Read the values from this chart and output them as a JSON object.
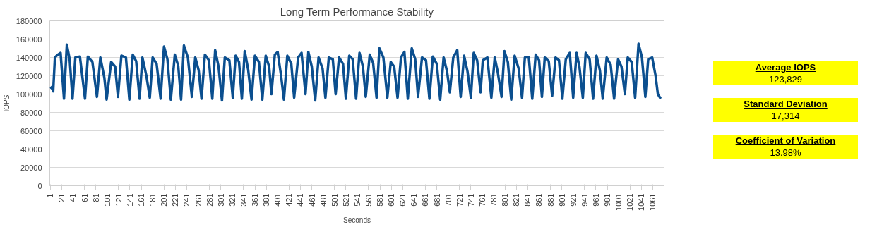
{
  "chart_data": {
    "type": "line",
    "title": "Long Term Performance Stability",
    "xlabel": "Seconds",
    "ylabel": "IOPS",
    "x": [
      1,
      4,
      6,
      9,
      14,
      19,
      25,
      30,
      35,
      40,
      45,
      53,
      62,
      67,
      75,
      83,
      89,
      96,
      100,
      108,
      115,
      120,
      126,
      134,
      140,
      146,
      152,
      158,
      163,
      170,
      176,
      181,
      188,
      195,
      201,
      207,
      213,
      220,
      226,
      231,
      236,
      243,
      250,
      256,
      262,
      267,
      273,
      280,
      286,
      291,
      297,
      303,
      308,
      316,
      322,
      327,
      333,
      338,
      343,
      349,
      355,
      361,
      368,
      374,
      380,
      386,
      390,
      396,
      401,
      407,
      412,
      418,
      425,
      430,
      437,
      443,
      450,
      455,
      461,
      467,
      473,
      480,
      485,
      491,
      498,
      503,
      509,
      516,
      521,
      527,
      533,
      539,
      545,
      551,
      556,
      563,
      569,
      575,
      580,
      587,
      594,
      600,
      606,
      612,
      618,
      624,
      630,
      637,
      643,
      648,
      655,
      662,
      668,
      674,
      681,
      687,
      693,
      699,
      704,
      710,
      717,
      723,
      729,
      735,
      741,
      746,
      752,
      758,
      762,
      770,
      777,
      783,
      788,
      795,
      800,
      806,
      812,
      818,
      825,
      831,
      836,
      843,
      849,
      855,
      861,
      866,
      871,
      878,
      884,
      890,
      896,
      902,
      908,
      915,
      921,
      927,
      932,
      938,
      943,
      950,
      956,
      962,
      968,
      973,
      980,
      987,
      993,
      1000,
      1006,
      1012,
      1017,
      1024,
      1030,
      1036,
      1042,
      1048,
      1053,
      1060,
      1066,
      1070,
      1075
    ],
    "series": [
      {
        "color": "#0b4f8f",
        "values": [
          106000,
          108000,
          103000,
          140000,
          143000,
          145000,
          95000,
          154000,
          138000,
          95000,
          140000,
          141000,
          95000,
          141000,
          135000,
          97000,
          140000,
          118000,
          94000,
          135000,
          130000,
          97000,
          142000,
          140000,
          94000,
          143000,
          136000,
          95000,
          140000,
          120000,
          96000,
          140000,
          133000,
          95000,
          152000,
          138000,
          94000,
          143000,
          131000,
          94000,
          153000,
          140000,
          97000,
          140000,
          126000,
          95000,
          143000,
          137000,
          95000,
          148000,
          130000,
          93000,
          140000,
          137000,
          96000,
          142000,
          135000,
          95000,
          147000,
          127000,
          94000,
          142000,
          135000,
          94000,
          142000,
          130000,
          100000,
          143000,
          146000,
          120000,
          94000,
          142000,
          133000,
          96000,
          140000,
          145000,
          100000,
          146000,
          130000,
          93000,
          140000,
          128000,
          96000,
          140000,
          138000,
          100000,
          140000,
          133000,
          95000,
          142000,
          138000,
          95000,
          145000,
          130000,
          97000,
          143000,
          134000,
          96000,
          150000,
          140000,
          96000,
          135000,
          130000,
          96000,
          140000,
          146000,
          95000,
          150000,
          138000,
          97000,
          140000,
          137000,
          95000,
          141000,
          133000,
          94000,
          140000,
          125000,
          102000,
          140000,
          148000,
          97000,
          142000,
          125000,
          96000,
          145000,
          137000,
          102000,
          137000,
          140000,
          96000,
          140000,
          125000,
          97000,
          147000,
          135000,
          94000,
          142000,
          128000,
          96000,
          140000,
          140000,
          95000,
          143000,
          137000,
          97000,
          140000,
          136000,
          98000,
          140000,
          137000,
          95000,
          138000,
          145000,
          96000,
          145000,
          130000,
          96000,
          145000,
          138000,
          95000,
          142000,
          126000,
          95000,
          140000,
          132000,
          95000,
          138000,
          130000,
          100000,
          140000,
          135000,
          96000,
          155000,
          140000,
          97000,
          138000,
          140000,
          120000,
          100000,
          95000
        ]
      }
    ],
    "xlim": [
      0,
      1081
    ],
    "xticks": [
      1,
      21,
      41,
      61,
      81,
      101,
      121,
      141,
      161,
      181,
      201,
      221,
      241,
      261,
      281,
      301,
      321,
      341,
      361,
      381,
      401,
      421,
      441,
      461,
      481,
      501,
      521,
      541,
      561,
      581,
      601,
      621,
      641,
      661,
      681,
      701,
      721,
      741,
      761,
      781,
      801,
      821,
      841,
      861,
      881,
      901,
      921,
      941,
      961,
      981,
      1001,
      1021,
      1041,
      1061
    ],
    "ylim": [
      0,
      180000
    ],
    "yticks": [
      0,
      20000,
      40000,
      60000,
      80000,
      100000,
      120000,
      140000,
      160000,
      180000
    ],
    "grid": "y",
    "marker": "none",
    "line_style": "solid",
    "annotations": [
      "Average IOPS",
      "123,829",
      "Standard Deviation",
      "17,314",
      "Coefficient of Variation",
      "13.98%"
    ]
  }
}
